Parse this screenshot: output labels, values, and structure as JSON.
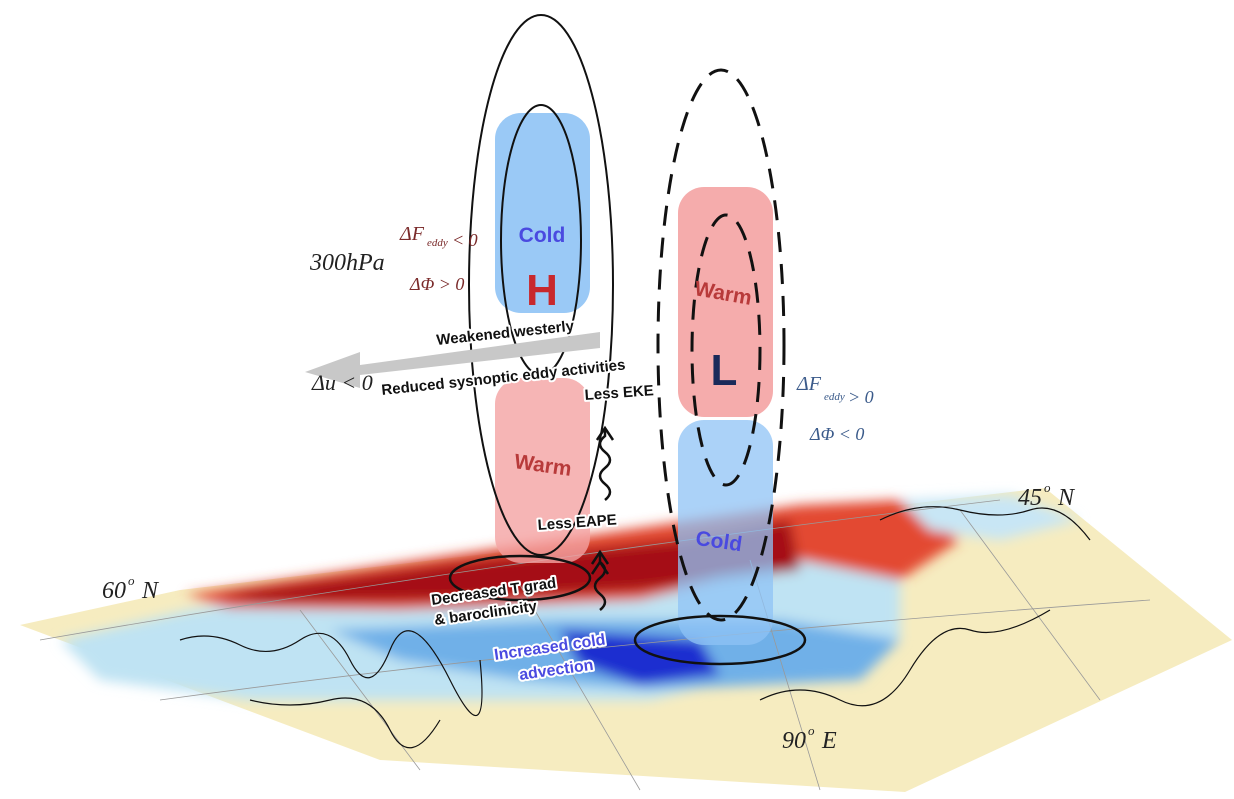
{
  "labels": {
    "level": "300hPa",
    "du": "Δu < 0",
    "left_flux": {
      "main": "ΔF",
      "sub": "eddy",
      "rel": "< 0"
    },
    "left_phi": "ΔΦ > 0",
    "right_flux": {
      "main": "ΔF",
      "sub": "eddy",
      "rel": "> 0"
    },
    "right_phi": "ΔΦ < 0",
    "lat45": "45",
    "lat60": "60",
    "lon90": "90",
    "deg": "o",
    "lat_n": "N",
    "lon_e": "E"
  },
  "boxes": {
    "upper_left": "Cold",
    "upper_left_center": "H",
    "lower_left": "Warm",
    "upper_right": "Warm",
    "upper_right_center": "L",
    "lower_right": "Cold"
  },
  "annotations": {
    "weakened": "Weakened westerly",
    "reduced": "Reduced sysnoptic eddy activities",
    "eke": "Less EKE",
    "eape": "Less EAPE",
    "tgrad1": "Decreased T grad",
    "tgrad2": "& baroclinicity",
    "cold1": "Increased cold",
    "cold2": "advection"
  },
  "colors": {
    "cold_box": "#8fc3f5",
    "warm_box": "#f4a3a3",
    "H": "#c8282d",
    "L": "#1a2a5a",
    "cold_text": "#4a4ae0",
    "warm_text": "#b83a3a",
    "left_eq": "#7a2a2a",
    "right_eq": "#3a5a8a"
  }
}
